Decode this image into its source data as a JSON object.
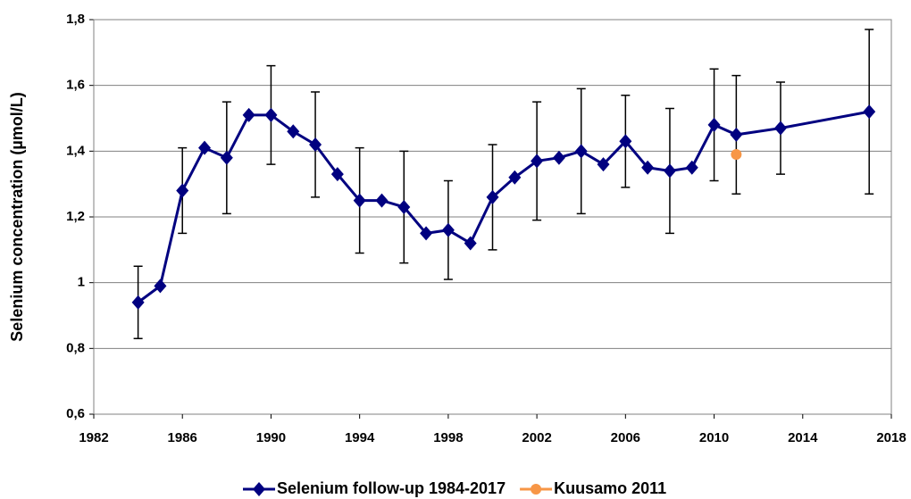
{
  "chart_data": {
    "type": "line",
    "y_label": "Selenium concentration (µmol/L)",
    "xlim": [
      1982,
      2018
    ],
    "xticks": [
      1982,
      1986,
      1990,
      1994,
      1998,
      2002,
      2006,
      2010,
      2014,
      2018
    ],
    "ylim": [
      0.6,
      1.8
    ],
    "yticks": [
      {
        "value": 0.6,
        "label": "0,6"
      },
      {
        "value": 0.8,
        "label": "0,8"
      },
      1,
      {
        "value": 1.2,
        "label": "1,2"
      },
      {
        "value": 1.4,
        "label": "1,4"
      },
      {
        "value": 1.6,
        "label": "1,6"
      },
      {
        "value": 1.8,
        "label": "1,8"
      }
    ],
    "grid": true,
    "legend": "bottom",
    "series": [
      {
        "name": "Selenium follow-up 1984-2017",
        "color": "#000080",
        "marker": "diamond",
        "x": [
          1984,
          1985,
          1986,
          1987,
          1988,
          1989,
          1990,
          1991,
          1992,
          1993,
          1994,
          1995,
          1996,
          1997,
          1998,
          1999,
          2000,
          2001,
          2002,
          2003,
          2004,
          2005,
          2006,
          2007,
          2008,
          2009,
          2010,
          2011,
          2013,
          2017
        ],
        "values": [
          0.94,
          0.99,
          1.28,
          1.41,
          1.38,
          1.51,
          1.51,
          1.46,
          1.42,
          1.33,
          1.25,
          1.25,
          1.23,
          1.15,
          1.16,
          1.12,
          1.26,
          1.32,
          1.37,
          1.38,
          1.4,
          1.36,
          1.43,
          1.35,
          1.34,
          1.35,
          1.48,
          1.45,
          1.47,
          1.52
        ],
        "errors": [
          0.11,
          null,
          0.13,
          null,
          0.17,
          null,
          0.15,
          null,
          0.16,
          null,
          0.16,
          null,
          0.17,
          null,
          0.15,
          null,
          0.16,
          null,
          0.18,
          null,
          0.19,
          null,
          0.14,
          null,
          0.19,
          null,
          0.17,
          0.18,
          0.14,
          0.25
        ]
      },
      {
        "name": "Kuusamo 2011",
        "color": "#f79646",
        "marker": "circle",
        "x": [
          2011
        ],
        "values": [
          1.39
        ]
      }
    ]
  }
}
